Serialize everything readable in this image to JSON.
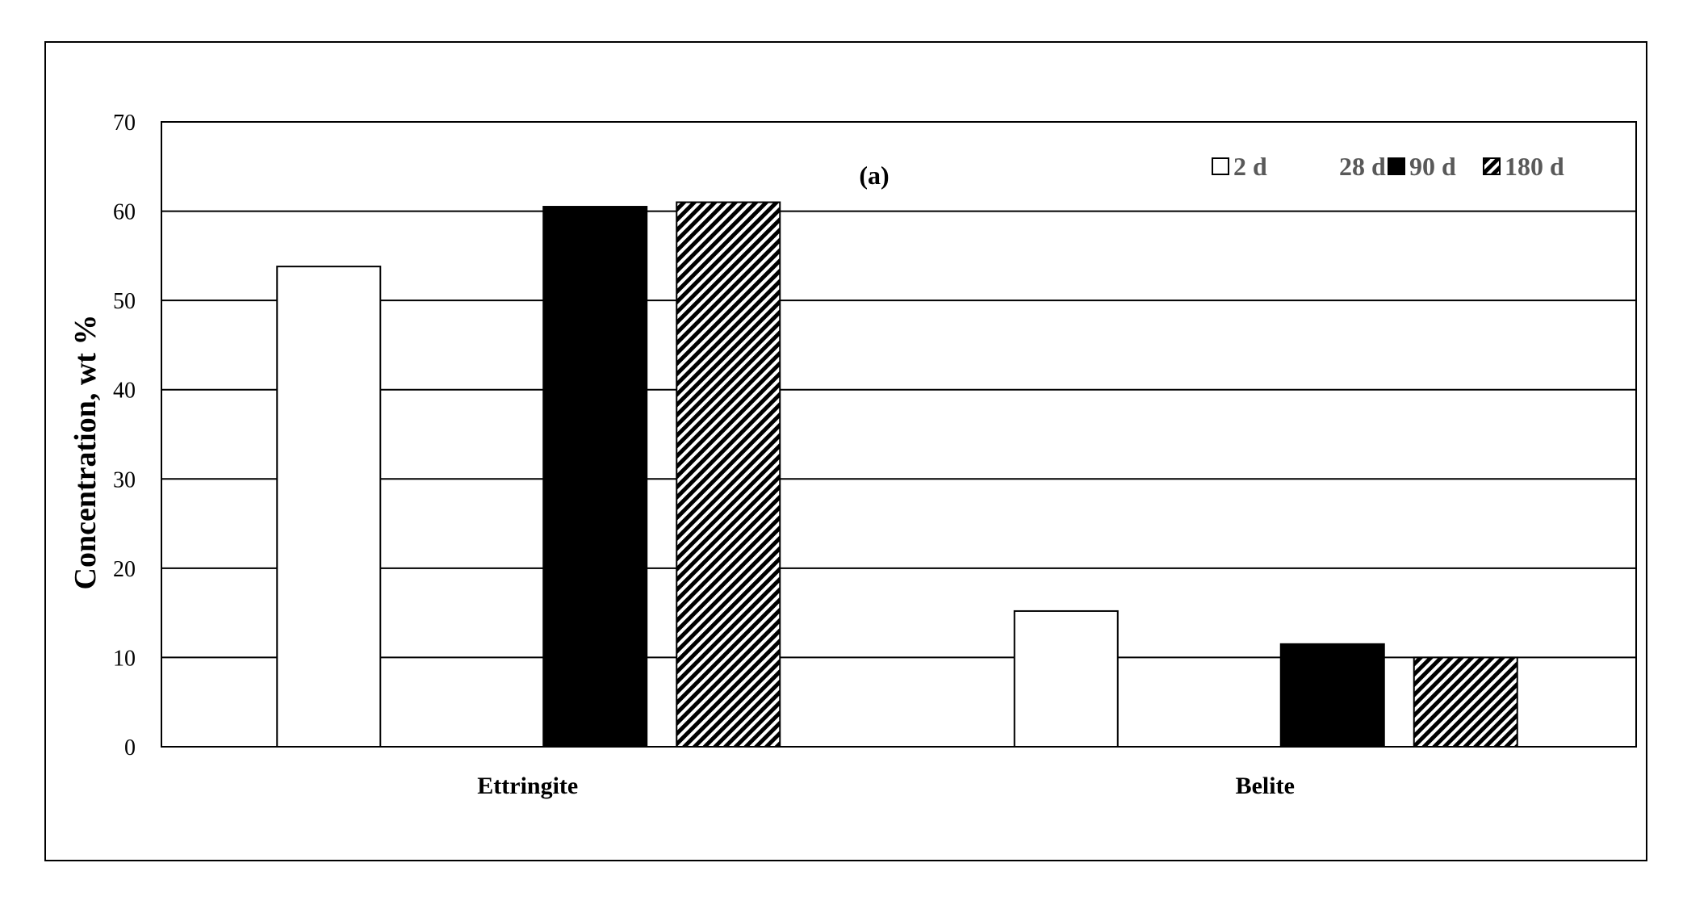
{
  "chart_data": {
    "type": "bar",
    "title": "(a)",
    "ylabel": "Concentration, wt %",
    "xlabel": "",
    "ylim": [
      0,
      70
    ],
    "yticks": [
      0,
      10,
      20,
      30,
      40,
      50,
      60,
      70
    ],
    "grid": true,
    "legend_position": "top-right",
    "categories": [
      "Ettringite",
      "Belite"
    ],
    "series": [
      {
        "name": "2 d",
        "values": [
          53.8,
          15.2
        ],
        "fill": "#ffffff",
        "pattern": "none"
      },
      {
        "name": "28 d",
        "values": [
          0,
          0
        ],
        "fill": "#ffffff",
        "pattern": "none"
      },
      {
        "name": "90 d",
        "values": [
          60.5,
          11.5
        ],
        "fill": "#000000",
        "pattern": "none"
      },
      {
        "name": "180 d",
        "values": [
          61.0,
          10.0
        ],
        "fill": "#000000",
        "pattern": "diagonal-stripes"
      }
    ],
    "colors": {
      "axis": "#000000",
      "grid": "#000000",
      "legend_text": "#595959"
    }
  }
}
